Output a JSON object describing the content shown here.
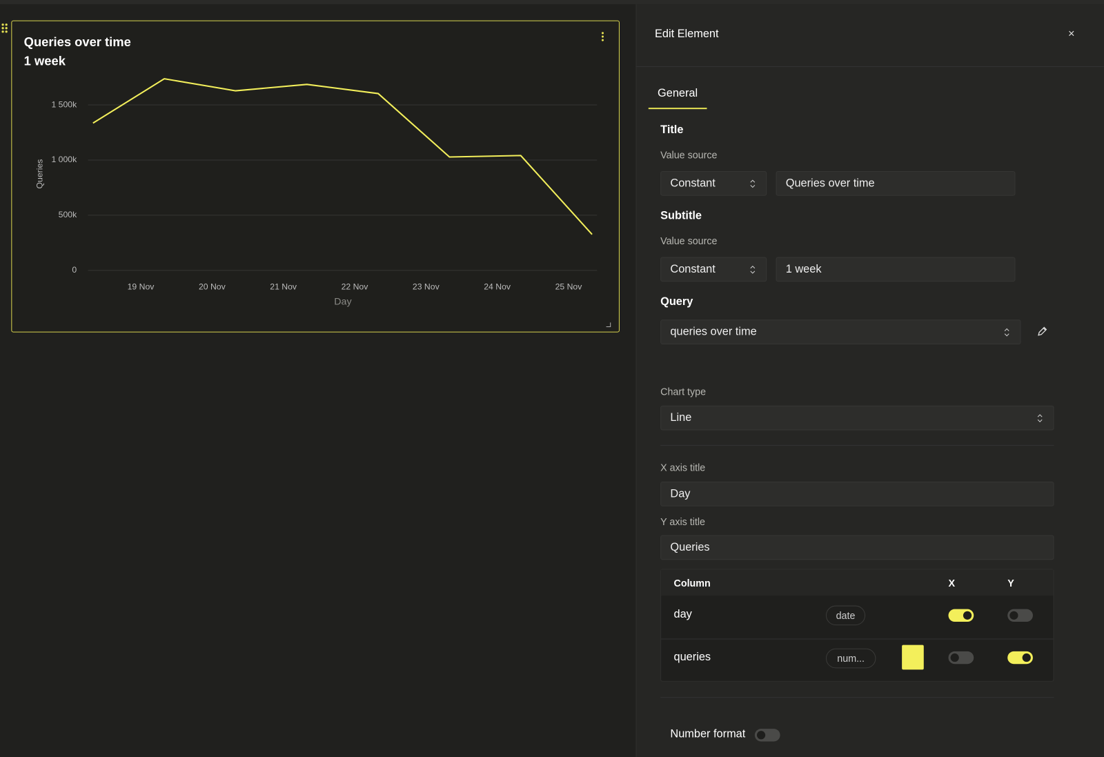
{
  "chart_data": {
    "type": "line",
    "title": "Queries over time",
    "subtitle": "1 week",
    "xlabel": "Day",
    "ylabel": "Queries",
    "x": [
      18.33,
      19.33,
      20.33,
      21.33,
      22.33,
      23.33,
      24.33,
      25.33
    ],
    "values": [
      1335000,
      1737000,
      1628000,
      1686000,
      1603000,
      1028000,
      1041000,
      326000
    ],
    "color": "#f3ef5b",
    "xlim": [
      18.26,
      25.4
    ],
    "xticks": [
      {
        "value": 19,
        "label": "19 Nov"
      },
      {
        "value": 20,
        "label": "20 Nov"
      },
      {
        "value": 21,
        "label": "21 Nov"
      },
      {
        "value": 22,
        "label": "22 Nov"
      },
      {
        "value": 23,
        "label": "23 Nov"
      },
      {
        "value": 24,
        "label": "24 Nov"
      },
      {
        "value": 25,
        "label": "25 Nov"
      }
    ],
    "ylim": [
      0,
      1800000
    ],
    "yticks": [
      0,
      {
        "value": 500000,
        "label": "500k"
      },
      {
        "value": 1000000,
        "label": "1 000k"
      },
      {
        "value": 1500000,
        "label": "1 500k"
      }
    ],
    "grid": true
  },
  "panel": {
    "title": "Edit Element",
    "close": "×",
    "tab": "General",
    "title_section": {
      "heading": "Title",
      "label": "Value source",
      "source": "Constant",
      "value": "Queries over time"
    },
    "subtitle_section": {
      "heading": "Subtitle",
      "label": "Value source",
      "source": "Constant",
      "value": "1 week"
    },
    "query_section": {
      "heading": "Query",
      "value": "queries over time"
    },
    "chart_type": {
      "label": "Chart type",
      "value": "Line"
    },
    "x_axis_title": {
      "label": "X axis title",
      "value": "Day"
    },
    "y_axis_title": {
      "label": "Y axis title",
      "value": "Queries"
    },
    "columns": {
      "header": [
        "Column",
        "X",
        "Y"
      ],
      "rows": [
        {
          "name": "day",
          "type": "date",
          "x": true,
          "y": false
        },
        {
          "name": "queries",
          "type": "num...",
          "x": false,
          "y": true
        }
      ]
    },
    "number_format": {
      "label": "Number format",
      "enabled": false
    }
  }
}
